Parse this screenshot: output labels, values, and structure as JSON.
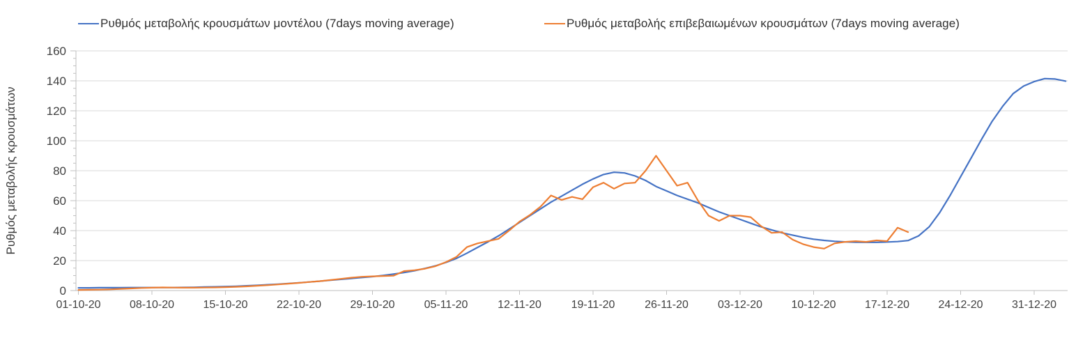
{
  "chart_data": {
    "type": "line",
    "title": "",
    "xlabel": "",
    "ylabel": "Ρυθμός μεταβολής κρουσμάτων",
    "ylim": [
      0,
      160
    ],
    "y_major_ticks": [
      0,
      20,
      40,
      60,
      80,
      100,
      120,
      140,
      160
    ],
    "y_minor_step": 5,
    "grid": "horizontal-only",
    "legend_position": "top",
    "x_start_date": "01-10-20",
    "x_step": "1 day",
    "x_tick_interval_days": 7,
    "x_tick_labels": [
      "01-10-20",
      "08-10-20",
      "15-10-20",
      "22-10-20",
      "29-10-20",
      "05-11-20",
      "12-11-20",
      "19-11-20",
      "26-11-20",
      "03-12-20",
      "10-12-20",
      "17-12-20",
      "24-12-20",
      "31-12-20"
    ],
    "series": [
      {
        "name": "Ρυθμός μεταβολής κρουσμάτων μοντέλου (7days moving average)",
        "color": "#4472c4",
        "start_day": 0,
        "values": [
          1.8,
          1.8,
          1.9,
          1.9,
          1.9,
          2.0,
          2.0,
          2.0,
          2.0,
          2.0,
          2.1,
          2.2,
          2.35,
          2.5,
          2.7,
          2.9,
          3.2,
          3.5,
          3.9,
          4.3,
          4.7,
          5.2,
          5.7,
          6.3,
          6.9,
          7.5,
          8.1,
          8.7,
          9.3,
          10.1,
          11.0,
          12.0,
          13.2,
          14.8,
          16.5,
          18.8,
          21.5,
          25.0,
          28.8,
          32.5,
          36.5,
          41.0,
          45.5,
          50.0,
          54.5,
          59.0,
          63.0,
          67.0,
          71.0,
          74.5,
          77.5,
          79.0,
          78.5,
          76.5,
          73.5,
          69.5,
          66.5,
          63.5,
          61.0,
          58.5,
          55.5,
          52.5,
          50.0,
          47.5,
          45.0,
          42.5,
          40.5,
          38.5,
          37.0,
          35.5,
          34.3,
          33.5,
          32.9,
          32.5,
          32.3,
          32.2,
          32.2,
          32.4,
          32.7,
          33.4,
          36.5,
          42.5,
          52.0,
          63.5,
          76.0,
          88.5,
          101.0,
          113.0,
          123.0,
          131.5,
          136.5,
          139.5,
          141.5,
          141.2,
          139.8
        ]
      },
      {
        "name": "Ρυθμός μεταβολής επιβεβαιωμένων κρουσμάτων (7days moving average)",
        "color": "#ed7d31",
        "start_day": 0,
        "values": [
          0.4,
          0.5,
          0.6,
          0.8,
          1.1,
          1.4,
          1.7,
          1.9,
          2.1,
          2.0,
          1.9,
          1.9,
          2.0,
          2.1,
          2.3,
          2.5,
          2.8,
          3.2,
          3.6,
          4.1,
          4.6,
          5.1,
          5.7,
          6.3,
          7.0,
          7.8,
          8.6,
          9.2,
          9.5,
          9.7,
          9.9,
          13.0,
          13.6,
          14.6,
          16.3,
          19.0,
          22.5,
          29.0,
          31.5,
          33.0,
          34.5,
          40.0,
          46.0,
          50.5,
          56.0,
          63.5,
          60.5,
          62.5,
          61.0,
          69.0,
          72.0,
          68.0,
          71.5,
          72.0,
          80.0,
          90.0,
          80.0,
          70.0,
          72.0,
          60.0,
          50.0,
          46.5,
          50.0,
          50.0,
          49.0,
          43.0,
          38.5,
          39.0,
          34.0,
          31.0,
          29.0,
          28.0,
          31.5,
          32.5,
          33.0,
          32.5,
          33.5,
          33.0,
          42.0,
          39.0
        ]
      }
    ],
    "colors": {
      "grid": "#d9d9d9",
      "axis": "#bfbfbf",
      "tick_label": "#404040",
      "legend_text": "#303030"
    }
  }
}
